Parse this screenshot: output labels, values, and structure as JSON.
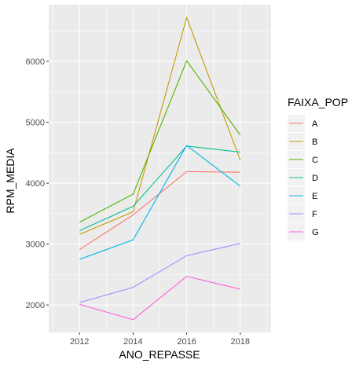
{
  "chart_data": {
    "type": "line",
    "xlabel": "ANO_REPASSE",
    "ylabel": "RPM_MEDIA",
    "legend_title": "FAIXA_POP",
    "legend_position": "right",
    "grid": true,
    "x": [
      2012,
      2014,
      2016,
      2018
    ],
    "x_ticks": [
      2012,
      2014,
      2016,
      2018
    ],
    "y_ticks": [
      2000,
      3000,
      4000,
      5000,
      6000
    ],
    "xlim": [
      2010.85,
      2019.15
    ],
    "ylim": [
      1550,
      6930
    ],
    "series": [
      {
        "name": "A",
        "color": "#F8766D",
        "values": [
          2910,
          3480,
          4190,
          4180
        ]
      },
      {
        "name": "B",
        "color": "#C49A00",
        "values": [
          3160,
          3530,
          6720,
          4380
        ]
      },
      {
        "name": "C",
        "color": "#53B400",
        "values": [
          3360,
          3820,
          6010,
          4790
        ]
      },
      {
        "name": "D",
        "color": "#00C094",
        "values": [
          3220,
          3620,
          4610,
          4510
        ]
      },
      {
        "name": "E",
        "color": "#00B6EB",
        "values": [
          2750,
          3070,
          4620,
          3950
        ]
      },
      {
        "name": "F",
        "color": "#A58AFF",
        "values": [
          2040,
          2290,
          2810,
          3010
        ]
      },
      {
        "name": "G",
        "color": "#FB61D7",
        "values": [
          2010,
          1760,
          2470,
          2260
        ]
      }
    ]
  }
}
